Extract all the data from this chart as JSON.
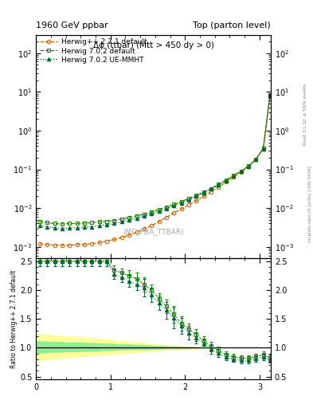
{
  "title_left": "1960 GeV ppbar",
  "title_right": "Top (parton level)",
  "plot_title": "Δϕ (ttbar) (Mtt > 450 dy > 0)",
  "ylabel_ratio": "Ratio to Herwig++ 2.7.1 default",
  "right_label": "Rivet 3.1.10, ≥ 500k events",
  "right_label2": "mcplots.cern.ch [arXiv:1306.3436]",
  "watermark": "(MC_FBA_TTBAR)",
  "xlim": [
    0.0,
    3.15
  ],
  "ylim_main": [
    0.0005,
    300
  ],
  "ylim_ratio": [
    0.45,
    2.55
  ],
  "legend_labels": [
    "Herwig++ 2.7.1 default",
    "Herwig 7.0.2 default",
    "Herwig 7.0.2 UE-MMHT"
  ],
  "hw1_x": [
    0.05,
    0.15,
    0.25,
    0.35,
    0.45,
    0.55,
    0.65,
    0.75,
    0.85,
    0.95,
    1.05,
    1.15,
    1.25,
    1.35,
    1.45,
    1.55,
    1.65,
    1.75,
    1.85,
    1.95,
    2.05,
    2.15,
    2.25,
    2.35,
    2.45,
    2.55,
    2.65,
    2.75,
    2.85,
    2.95,
    3.05,
    3.14
  ],
  "hw1_y": [
    0.0012,
    0.00115,
    0.0011,
    0.0011,
    0.0011,
    0.00115,
    0.00115,
    0.0012,
    0.0013,
    0.0014,
    0.00155,
    0.00175,
    0.002,
    0.0024,
    0.0029,
    0.0035,
    0.0045,
    0.0058,
    0.0075,
    0.0095,
    0.012,
    0.0155,
    0.02,
    0.0265,
    0.035,
    0.047,
    0.063,
    0.085,
    0.12,
    0.18,
    0.35,
    8.0
  ],
  "hw2_x": [
    0.05,
    0.15,
    0.25,
    0.35,
    0.45,
    0.55,
    0.65,
    0.75,
    0.85,
    0.95,
    1.05,
    1.15,
    1.25,
    1.35,
    1.45,
    1.55,
    1.65,
    1.75,
    1.85,
    1.95,
    2.05,
    2.15,
    2.25,
    2.35,
    2.45,
    2.55,
    2.65,
    2.75,
    2.85,
    2.95,
    3.05,
    3.14
  ],
  "hw2_y": [
    0.0045,
    0.0042,
    0.004,
    0.0039,
    0.004,
    0.004,
    0.0041,
    0.0042,
    0.0044,
    0.0046,
    0.0048,
    0.0052,
    0.0057,
    0.0063,
    0.007,
    0.008,
    0.0092,
    0.0106,
    0.0125,
    0.0148,
    0.0176,
    0.0212,
    0.026,
    0.032,
    0.041,
    0.053,
    0.069,
    0.09,
    0.122,
    0.182,
    0.35,
    8.5
  ],
  "hw3_x": [
    0.05,
    0.15,
    0.25,
    0.35,
    0.45,
    0.55,
    0.65,
    0.75,
    0.85,
    0.95,
    1.05,
    1.15,
    1.25,
    1.35,
    1.45,
    1.55,
    1.65,
    1.75,
    1.85,
    1.95,
    2.05,
    2.15,
    2.25,
    2.35,
    2.45,
    2.55,
    2.65,
    2.75,
    2.85,
    2.95,
    3.05,
    3.14
  ],
  "hw3_y": [
    0.0035,
    0.0033,
    0.0031,
    0.003,
    0.0031,
    0.0031,
    0.0032,
    0.0033,
    0.0035,
    0.0037,
    0.004,
    0.0044,
    0.0049,
    0.0055,
    0.0062,
    0.0071,
    0.0082,
    0.0096,
    0.0114,
    0.0136,
    0.0163,
    0.02,
    0.0248,
    0.031,
    0.04,
    0.0515,
    0.0675,
    0.0885,
    0.12,
    0.178,
    0.34,
    8.2
  ],
  "ratio2_y": [
    2.5,
    2.5,
    2.5,
    2.5,
    2.5,
    2.5,
    2.5,
    2.5,
    2.5,
    2.5,
    2.35,
    2.3,
    2.25,
    2.2,
    2.1,
    2.0,
    1.85,
    1.72,
    1.58,
    1.42,
    1.32,
    1.22,
    1.12,
    1.02,
    0.95,
    0.88,
    0.84,
    0.82,
    0.82,
    0.85,
    0.88,
    0.83
  ],
  "ratio3_y": [
    2.5,
    2.5,
    2.5,
    2.5,
    2.5,
    2.5,
    2.5,
    2.5,
    2.5,
    2.5,
    2.28,
    2.22,
    2.16,
    2.1,
    2.04,
    1.92,
    1.78,
    1.65,
    1.52,
    1.38,
    1.26,
    1.17,
    1.08,
    0.98,
    0.91,
    0.84,
    0.8,
    0.78,
    0.78,
    0.81,
    0.84,
    0.79
  ],
  "ratio2_yerr": [
    0.08,
    0.08,
    0.08,
    0.08,
    0.08,
    0.08,
    0.08,
    0.08,
    0.08,
    0.08,
    0.08,
    0.08,
    0.1,
    0.1,
    0.12,
    0.1,
    0.1,
    0.12,
    0.15,
    0.12,
    0.1,
    0.1,
    0.08,
    0.08,
    0.07,
    0.06,
    0.05,
    0.05,
    0.05,
    0.05,
    0.05,
    0.05
  ],
  "ratio3_yerr": [
    0.08,
    0.08,
    0.08,
    0.08,
    0.08,
    0.08,
    0.08,
    0.08,
    0.08,
    0.08,
    0.08,
    0.08,
    0.1,
    0.1,
    0.15,
    0.12,
    0.12,
    0.15,
    0.18,
    0.14,
    0.12,
    0.1,
    0.08,
    0.08,
    0.07,
    0.06,
    0.05,
    0.05,
    0.05,
    0.05,
    0.05,
    0.05
  ],
  "band_x": [
    0.0,
    0.1,
    0.2,
    0.3,
    0.4,
    0.5,
    0.6,
    0.7,
    0.8,
    0.9,
    1.0,
    1.1,
    1.2,
    1.3,
    1.4,
    1.5,
    1.6,
    1.7,
    1.8,
    1.9,
    2.0,
    2.1,
    2.2,
    2.3,
    2.4,
    2.5,
    2.6,
    2.7,
    2.8,
    2.9,
    3.0,
    3.1,
    3.15
  ],
  "band1_lo": [
    0.9,
    0.91,
    0.92,
    0.92,
    0.93,
    0.93,
    0.93,
    0.94,
    0.94,
    0.95,
    0.95,
    0.96,
    0.96,
    0.97,
    0.97,
    0.97,
    0.97,
    0.98,
    0.98,
    0.98,
    0.98,
    0.99,
    0.99,
    0.99,
    0.99,
    1.0,
    1.0,
    1.0,
    1.0,
    1.0,
    1.0,
    1.0,
    1.0
  ],
  "band1_hi": [
    1.12,
    1.12,
    1.11,
    1.11,
    1.1,
    1.1,
    1.1,
    1.09,
    1.09,
    1.08,
    1.08,
    1.07,
    1.07,
    1.06,
    1.06,
    1.05,
    1.04,
    1.04,
    1.03,
    1.03,
    1.02,
    1.02,
    1.01,
    1.01,
    1.01,
    1.0,
    1.0,
    1.0,
    1.0,
    1.0,
    1.0,
    1.0,
    1.0
  ],
  "band2_lo": [
    0.78,
    0.79,
    0.8,
    0.81,
    0.82,
    0.83,
    0.84,
    0.85,
    0.86,
    0.87,
    0.88,
    0.89,
    0.9,
    0.91,
    0.92,
    0.93,
    0.94,
    0.95,
    0.96,
    0.96,
    0.97,
    0.97,
    0.98,
    0.98,
    0.99,
    0.99,
    1.0,
    1.0,
    1.0,
    1.0,
    1.0,
    1.0,
    1.0
  ],
  "band2_hi": [
    1.25,
    1.24,
    1.23,
    1.22,
    1.21,
    1.2,
    1.19,
    1.18,
    1.17,
    1.16,
    1.15,
    1.13,
    1.12,
    1.11,
    1.1,
    1.08,
    1.07,
    1.06,
    1.05,
    1.04,
    1.03,
    1.02,
    1.02,
    1.01,
    1.01,
    1.0,
    1.0,
    1.0,
    1.0,
    1.0,
    1.0,
    1.0,
    1.0
  ],
  "band1_color": "#90ee90",
  "band2_color": "#ffff99",
  "main_color1": "#cc6600",
  "main_color2": "#228800",
  "main_color3": "#006633",
  "bg_color": "#ffffff"
}
